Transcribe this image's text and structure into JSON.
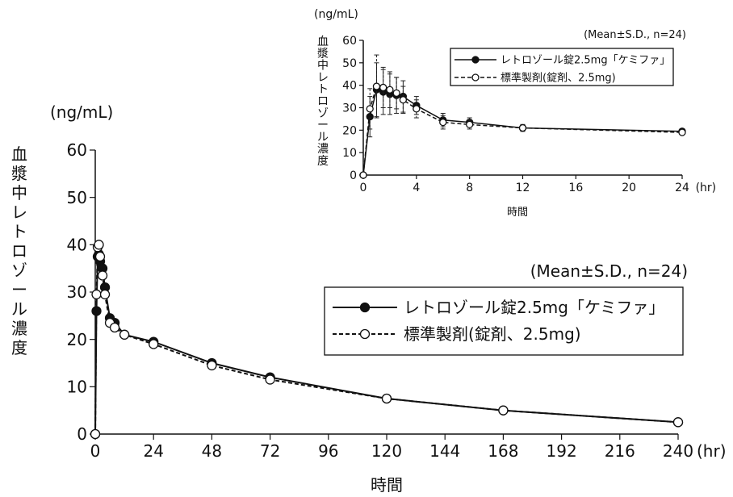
{
  "charts": [
    {
      "type": "line",
      "unit_label": "(ng/mL)",
      "ylabel": "血漿中レトロゾール濃度",
      "xlabel": "時間",
      "x_unit": "(hr)",
      "stat_note": "(Mean±S.D., n=24)",
      "xlim": [
        0,
        240
      ],
      "ylim": [
        0,
        60
      ],
      "xticks": [
        0,
        24,
        48,
        72,
        96,
        120,
        144,
        168,
        192,
        216,
        240
      ],
      "yticks": [
        0,
        10,
        20,
        30,
        40,
        50,
        60
      ],
      "series": [
        {
          "name": "レトロゾール錠2.5mg「ケミファ」",
          "marker": "filled-circle",
          "line": "solid",
          "x": [
            0,
            0.5,
            1,
            1.5,
            2,
            3,
            4,
            6,
            8,
            12,
            24,
            48,
            72,
            120,
            168,
            240
          ],
          "y": [
            0,
            26,
            37.5,
            38,
            36.5,
            35,
            31,
            24.5,
            23.5,
            21,
            19.5,
            15,
            12,
            7.5,
            5,
            2.5
          ]
        },
        {
          "name": "標準製剤(錠剤、2.5mg)",
          "marker": "open-circle",
          "line": "dashed",
          "x": [
            0,
            0.5,
            1,
            1.5,
            2,
            3,
            4,
            6,
            8,
            12,
            24,
            48,
            72,
            120,
            168,
            240
          ],
          "y": [
            0,
            29.5,
            39.5,
            40,
            37.5,
            33.5,
            29.5,
            23.5,
            22.5,
            21,
            19,
            14.5,
            11.5,
            7.5,
            5,
            2.5
          ]
        }
      ]
    },
    {
      "type": "line",
      "unit_label": "(ng/mL)",
      "ylabel": "血漿中レトロゾール濃度",
      "xlabel": "時間",
      "x_unit": "(hr)",
      "stat_note": "(Mean±S.D., n=24)",
      "xlim": [
        0,
        24
      ],
      "ylim": [
        0,
        60
      ],
      "xticks": [
        0,
        4,
        8,
        12,
        16,
        20,
        24
      ],
      "yticks": [
        0,
        10,
        20,
        30,
        40,
        50,
        60
      ],
      "series": [
        {
          "name": "レトロゾール錠2.5mg「ケミファ」",
          "marker": "filled-circle",
          "line": "solid",
          "x": [
            0,
            0.5,
            1,
            1.5,
            2,
            2.5,
            3,
            4,
            6,
            8,
            12,
            24
          ],
          "y": [
            0,
            26,
            38,
            37,
            36,
            35.5,
            35,
            31,
            24.5,
            23.5,
            21,
            19.5
          ],
          "sd": [
            0,
            9,
            12,
            10,
            9,
            8,
            7,
            4,
            3,
            2,
            1.5,
            1
          ]
        },
        {
          "name": "標準製剤(錠剤、2.5mg)",
          "marker": "open-circle",
          "line": "dashed",
          "x": [
            0,
            0.5,
            1,
            1.5,
            2,
            2.5,
            3,
            4,
            6,
            8,
            12,
            24
          ],
          "y": [
            0,
            29.5,
            39.5,
            39,
            38,
            36.5,
            33.5,
            29.5,
            23.5,
            22.5,
            21,
            19
          ],
          "sd": [
            0,
            9,
            14,
            9,
            8,
            7,
            6,
            4,
            3,
            2,
            1.5,
            1
          ]
        }
      ]
    }
  ]
}
